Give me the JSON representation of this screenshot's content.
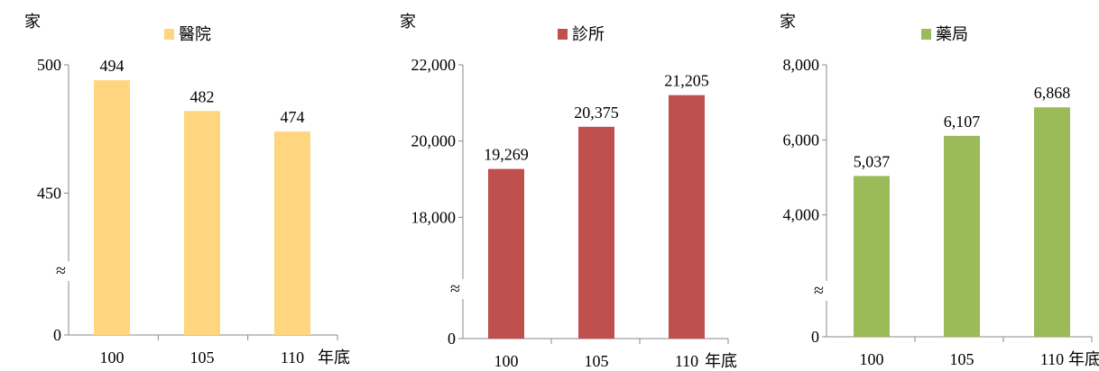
{
  "chart_data": [
    {
      "type": "bar",
      "unit": "家",
      "categories": [
        "100",
        "105",
        "110"
      ],
      "x_suffix": "年底",
      "series": [
        {
          "name": "醫院",
          "values": [
            494,
            482,
            474
          ],
          "labels": [
            "494",
            "482",
            "474"
          ],
          "color": "#FFD580"
        }
      ],
      "yticks": [
        {
          "value": 0,
          "label": "0"
        },
        {
          "value": 450,
          "label": "450"
        },
        {
          "value": 500,
          "label": "500"
        }
      ],
      "ylim_visible": [
        420,
        500
      ],
      "axis_break": true,
      "break_symbol": "≈",
      "grid": false,
      "legend_position": "top"
    },
    {
      "type": "bar",
      "unit": "家",
      "categories": [
        "100",
        "105",
        "110"
      ],
      "x_suffix": "年底",
      "series": [
        {
          "name": "診所",
          "values": [
            19269,
            20375,
            21205
          ],
          "labels": [
            "19,269",
            "20,375",
            "21,205"
          ],
          "color": "#C0504D"
        }
      ],
      "yticks": [
        {
          "value": 0,
          "label": "0"
        },
        {
          "value": 18000,
          "label": "18,000"
        },
        {
          "value": 20000,
          "label": "20,000"
        },
        {
          "value": 22000,
          "label": "22,000"
        }
      ],
      "ylim_visible": [
        16000,
        22000
      ],
      "axis_break": true,
      "break_symbol": "≈",
      "grid": false,
      "legend_position": "top"
    },
    {
      "type": "bar",
      "unit": "家",
      "categories": [
        "100",
        "105",
        "110"
      ],
      "x_suffix": "年底",
      "series": [
        {
          "name": "藥局",
          "values": [
            5037,
            6107,
            6868
          ],
          "labels": [
            "5,037",
            "6,107",
            "6,868"
          ],
          "color": "#9BBB59"
        }
      ],
      "yticks": [
        {
          "value": 0,
          "label": "0"
        },
        {
          "value": 4000,
          "label": "4,000"
        },
        {
          "value": 6000,
          "label": "6,000"
        },
        {
          "value": 8000,
          "label": "8,000"
        }
      ],
      "ylim_visible": [
        2000,
        8000
      ],
      "axis_break": true,
      "break_symbol": "≈",
      "grid": false,
      "legend_position": "top"
    }
  ]
}
